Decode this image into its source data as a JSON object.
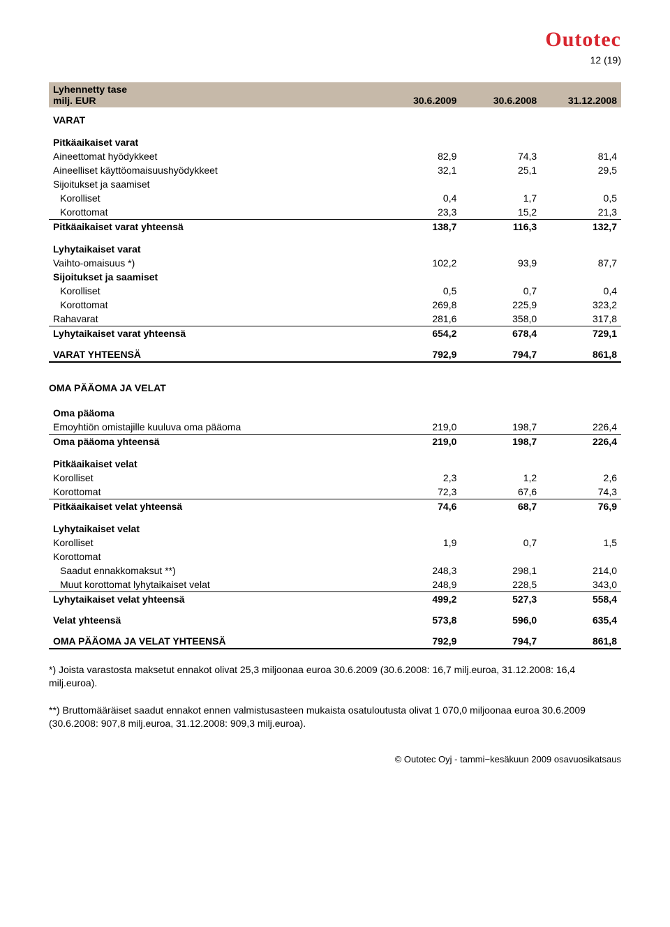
{
  "logo_text": "Outotec",
  "page_number": "12 (19)",
  "table_header": {
    "title1": "Lyhennetty tase",
    "title2": "milj. EUR",
    "col1": "30.6.2009",
    "col2": "30.6.2008",
    "col3": "31.12.2008"
  },
  "varat_label": "VARAT",
  "assets_long": {
    "title": "Pitkäaikaiset varat",
    "rows": [
      {
        "label": "Aineettomat hyödykkeet",
        "v": [
          "82,9",
          "74,3",
          "81,4"
        ]
      },
      {
        "label": "Aineelliset käyttöomaisuushyödykkeet",
        "v": [
          "32,1",
          "25,1",
          "29,5"
        ]
      },
      {
        "label": "Sijoitukset ja saamiset",
        "v": [
          "",
          "",
          ""
        ],
        "noval": true
      },
      {
        "label": "Korolliset",
        "v": [
          "0,4",
          "1,7",
          "0,5"
        ],
        "indent": true
      },
      {
        "label": "Korottomat",
        "v": [
          "23,3",
          "15,2",
          "21,3"
        ],
        "indent": true,
        "underline": true
      },
      {
        "label": "Pitkäaikaiset varat yhteensä",
        "v": [
          "138,7",
          "116,3",
          "132,7"
        ],
        "bold": true
      }
    ]
  },
  "assets_short": {
    "title": "Lyhytaikaiset varat",
    "rows": [
      {
        "label": "Vaihto-omaisuus *)",
        "v": [
          "102,2",
          "93,9",
          "87,7"
        ]
      },
      {
        "label": "Sijoitukset ja saamiset",
        "v": [
          "",
          "",
          ""
        ],
        "noval": true,
        "bold": true
      },
      {
        "label": "Korolliset",
        "v": [
          "0,5",
          "0,7",
          "0,4"
        ],
        "indent": true
      },
      {
        "label": "Korottomat",
        "v": [
          "269,8",
          "225,9",
          "323,2"
        ],
        "indent": true
      },
      {
        "label": "Rahavarat",
        "v": [
          "281,6",
          "358,0",
          "317,8"
        ],
        "underline": true
      },
      {
        "label": "Lyhytaikaiset varat yhteensä",
        "v": [
          "654,2",
          "678,4",
          "729,1"
        ],
        "bold": true
      }
    ]
  },
  "varat_total": {
    "label": "VARAT YHTEENSÄ",
    "v": [
      "792,9",
      "794,7",
      "861,8"
    ]
  },
  "equity_section_title": "OMA PÄÄOMA JA VELAT",
  "equity": {
    "title": "Oma pääoma",
    "rows": [
      {
        "label": "Emoyhtiön omistajille kuuluva oma pääoma",
        "v": [
          "219,0",
          "198,7",
          "226,4"
        ],
        "underline": true
      },
      {
        "label": "Oma pääoma yhteensä",
        "v": [
          "219,0",
          "198,7",
          "226,4"
        ],
        "bold": true
      }
    ]
  },
  "liab_long": {
    "title": "Pitkäaikaiset velat",
    "rows": [
      {
        "label": "Korolliset",
        "v": [
          "2,3",
          "1,2",
          "2,6"
        ]
      },
      {
        "label": "Korottomat",
        "v": [
          "72,3",
          "67,6",
          "74,3"
        ],
        "underline": true
      },
      {
        "label": "Pitkäaikaiset velat yhteensä",
        "v": [
          "74,6",
          "68,7",
          "76,9"
        ],
        "bold": true
      }
    ]
  },
  "liab_short": {
    "title": "Lyhytaikaiset velat",
    "rows": [
      {
        "label": "Korolliset",
        "v": [
          "1,9",
          "0,7",
          "1,5"
        ]
      },
      {
        "label": "Korottomat",
        "v": [
          "",
          "",
          ""
        ],
        "noval": true
      },
      {
        "label": "Saadut ennakkomaksut **)",
        "v": [
          "248,3",
          "298,1",
          "214,0"
        ],
        "indent": true
      },
      {
        "label": "Muut korottomat lyhytaikaiset velat",
        "v": [
          "248,9",
          "228,5",
          "343,0"
        ],
        "indent": true,
        "underline": true
      },
      {
        "label": "Lyhytaikaiset velat yhteensä",
        "v": [
          "499,2",
          "527,3",
          "558,4"
        ],
        "bold": true
      }
    ]
  },
  "liab_total": {
    "label": "Velat yhteensä",
    "v": [
      "573,8",
      "596,0",
      "635,4"
    ]
  },
  "grand_total": {
    "label": "OMA PÄÄOMA JA VELAT YHTEENSÄ",
    "v": [
      "792,9",
      "794,7",
      "861,8"
    ]
  },
  "footnote1": "*) Joista varastosta maksetut ennakot olivat 25,3 miljoonaa euroa 30.6.2009 (30.6.2008: 16,7 milj.euroa, 31.12.2008: 16,4 milj.euroa).",
  "footnote2": "**) Bruttomääräiset saadut ennakot ennen valmistusasteen mukaista osatuloutusta olivat 1 070,0 miljoonaa euroa 30.6.2009 (30.6.2008: 907,8 milj.euroa, 31.12.2008: 909,3 milj.euroa).",
  "footer": "© Outotec Oyj - tammi−kesäkuun 2009 osavuosikatsaus"
}
